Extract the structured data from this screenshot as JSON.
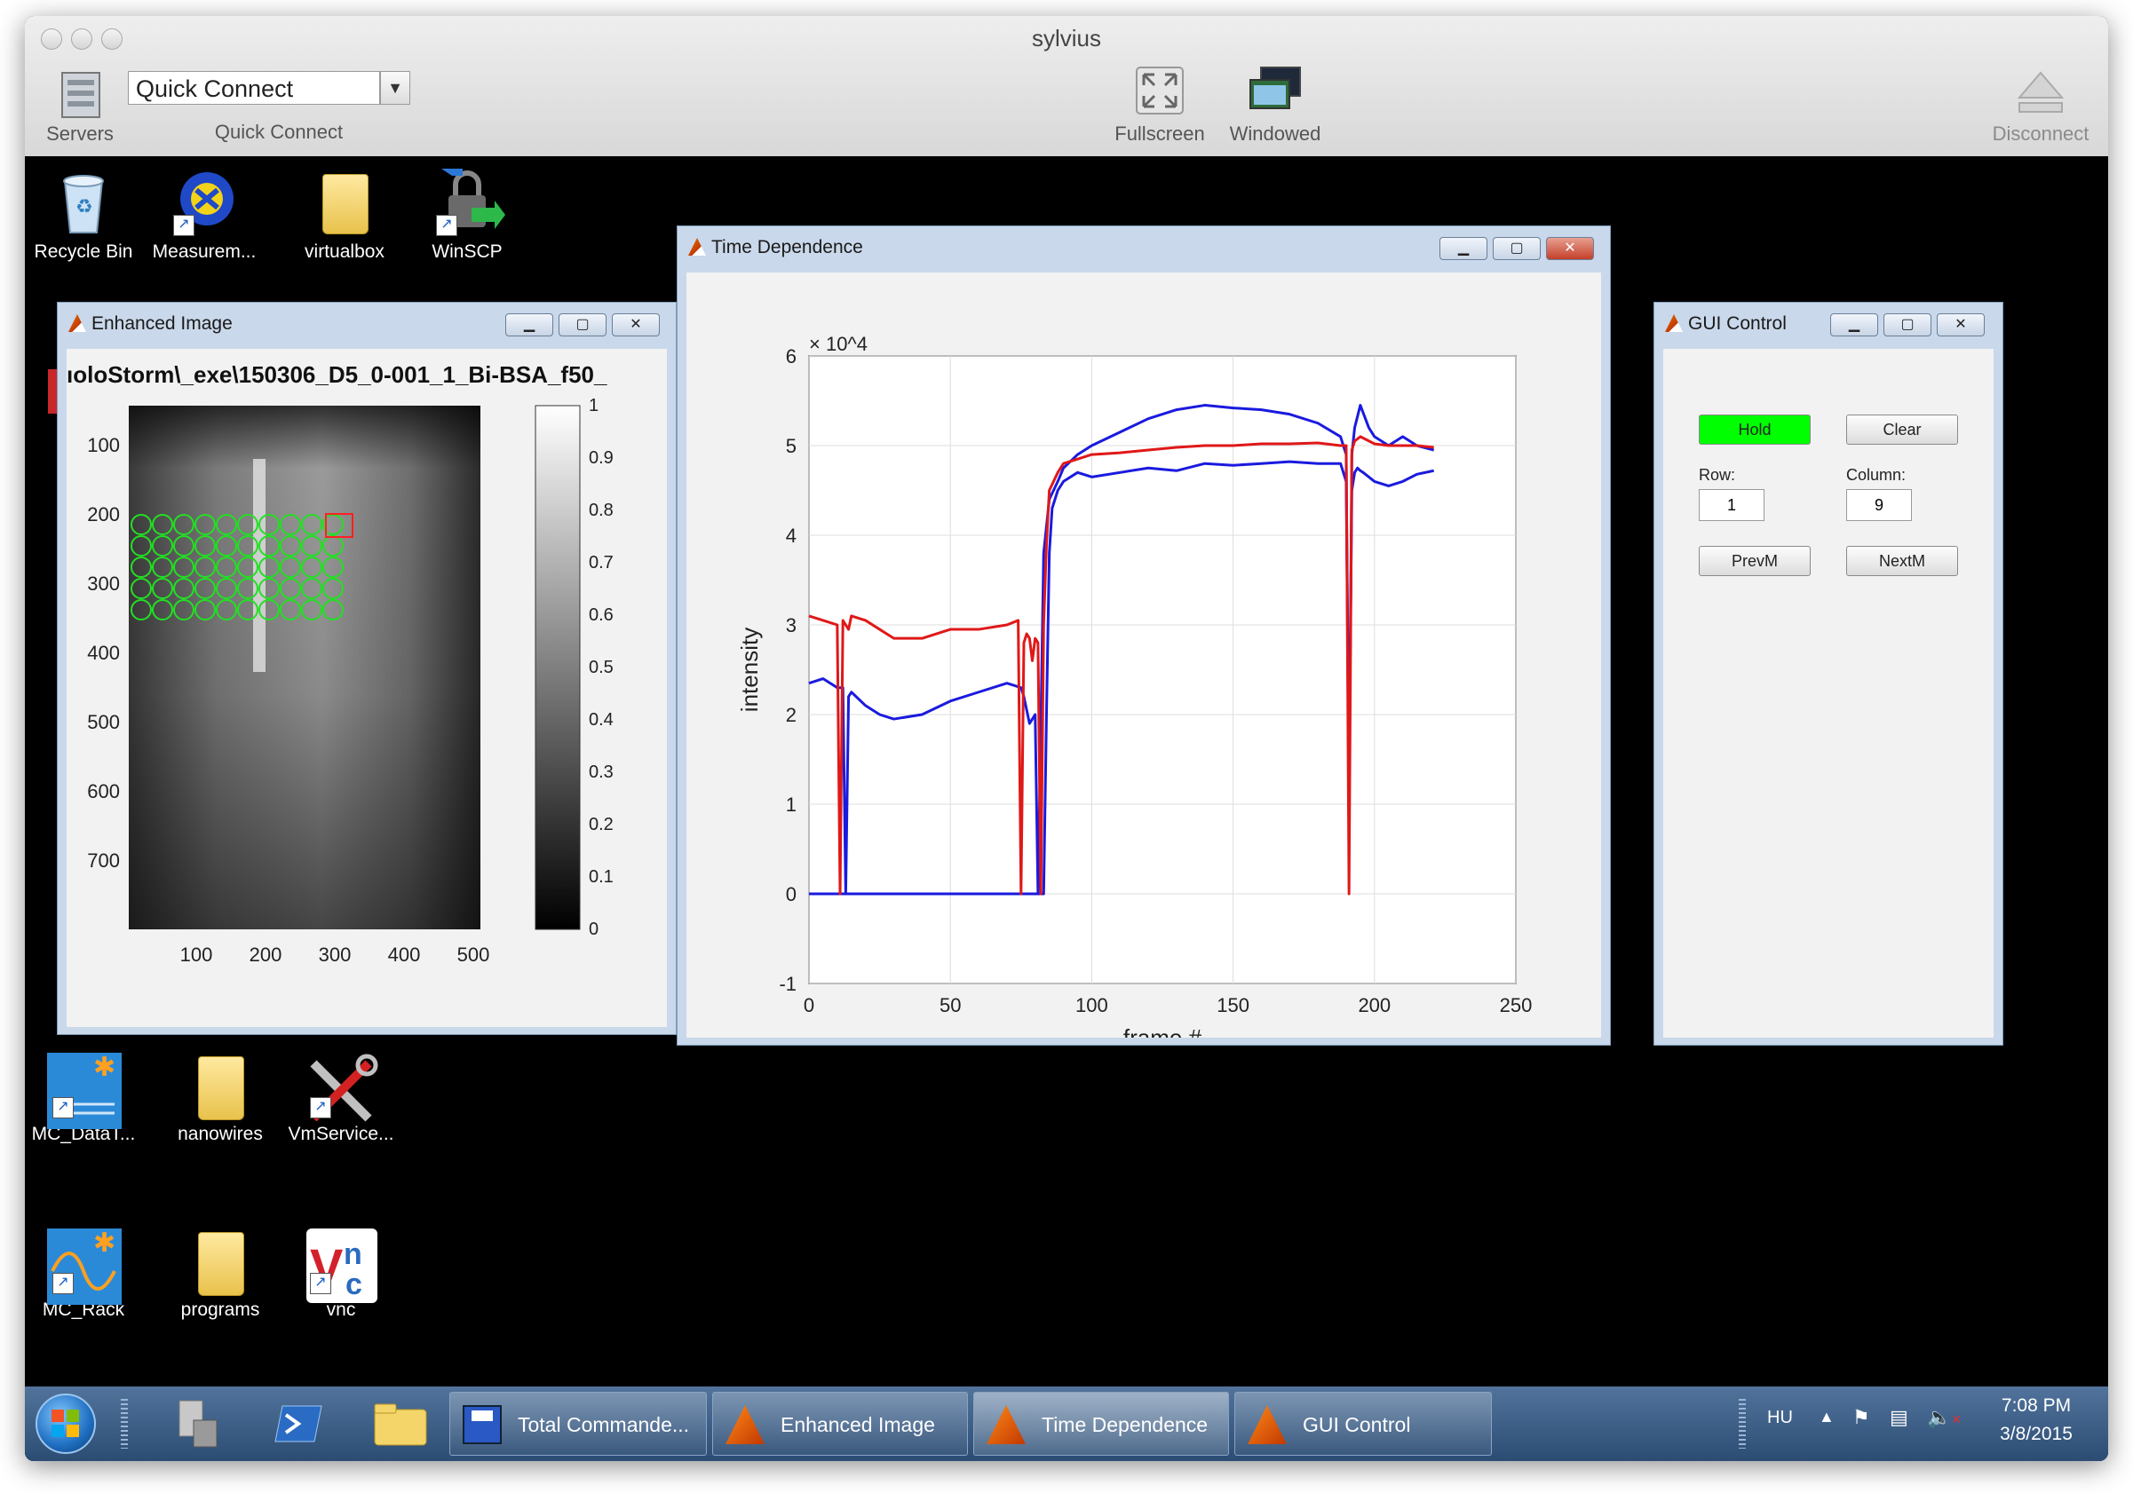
{
  "window": {
    "title": "sylvius"
  },
  "toolbar": {
    "servers_label": "Servers",
    "quick_connect_value": "Quick Connect",
    "quick_connect_label": "Quick Connect",
    "fullscreen_label": "Fullscreen",
    "windowed_label": "Windowed",
    "disconnect_label": "Disconnect"
  },
  "desktop": {
    "icons_top": [
      {
        "label": "Recycle Bin",
        "icon": "recycle-bin-icon"
      },
      {
        "label": "Measurem...",
        "icon": "measurement-app-icon"
      },
      {
        "label": "virtualbox",
        "icon": "folder-icon"
      },
      {
        "label": "WinSCP",
        "icon": "winscp-icon"
      }
    ],
    "icons_row2": [
      {
        "label": "MC_DataT...",
        "icon": "mc-datatool-icon"
      },
      {
        "label": "nanowires",
        "icon": "folder-icon"
      },
      {
        "label": "VmService...",
        "icon": "tools-icon"
      }
    ],
    "icons_row3": [
      {
        "label": "MC_Rack",
        "icon": "mc-rack-icon"
      },
      {
        "label": "programs",
        "icon": "folder-icon"
      },
      {
        "label": "vnc",
        "icon": "vnc-icon"
      }
    ]
  },
  "enhanced_image": {
    "title": "Enhanced Image",
    "heading": "ıoloStorm\\_exe\\150306_D5_0-001_1_Bi-BSA_f50_",
    "y_ticks": [
      "100",
      "200",
      "300",
      "400",
      "500",
      "600",
      "700"
    ],
    "x_ticks": [
      "100",
      "200",
      "300",
      "400",
      "500"
    ],
    "colorbar_ticks": [
      "1",
      "0.9",
      "0.8",
      "0.7",
      "0.6",
      "0.5",
      "0.4",
      "0.3",
      "0.2",
      "0.1",
      "0"
    ]
  },
  "time_dependence": {
    "title": "Time Dependence",
    "chart_data": {
      "type": "line",
      "xlabel": "frame #",
      "ylabel": "intensity",
      "y_multiplier": "× 10^4",
      "xlim": [
        0,
        250
      ],
      "ylim": [
        -1,
        6
      ],
      "x_ticks": [
        0,
        50,
        100,
        150,
        200,
        250
      ],
      "y_ticks": [
        -1,
        0,
        1,
        2,
        3,
        4,
        5,
        6
      ],
      "grid": true,
      "series": [
        {
          "color": "#1a1adf",
          "x": [
            0,
            5,
            10,
            11,
            12,
            13,
            14,
            20,
            30,
            40,
            50,
            60,
            70,
            74,
            75,
            76,
            77,
            78,
            79,
            80,
            82,
            83,
            84,
            85,
            86,
            88,
            90,
            95,
            100,
            110,
            120,
            130,
            140,
            150,
            160,
            170,
            180,
            188,
            190,
            191,
            192,
            193,
            194,
            195,
            196,
            198,
            200,
            205,
            210,
            215,
            221
          ],
          "values": [
            0,
            0,
            0,
            0,
            0,
            0,
            0,
            0,
            0,
            0,
            0,
            0,
            0,
            0,
            0,
            0,
            0,
            0,
            0,
            0,
            0,
            0,
            2,
            3.8,
            4.3,
            4.5,
            4.6,
            4.7,
            4.65,
            4.7,
            4.75,
            4.72,
            4.8,
            4.78,
            4.8,
            4.82,
            4.8,
            4.8,
            4.6,
            1.2,
            4.5,
            4.7,
            4.75,
            4.72,
            4.7,
            4.65,
            4.6,
            4.55,
            4.6,
            4.68,
            4.72
          ]
        },
        {
          "color": "#1a1adf",
          "x": [
            0,
            5,
            10,
            12,
            13,
            14,
            15,
            20,
            25,
            30,
            40,
            50,
            60,
            70,
            75,
            76,
            77,
            78,
            79,
            80,
            81,
            82,
            83,
            85,
            88,
            90,
            95,
            100,
            110,
            120,
            130,
            140,
            150,
            160,
            170,
            180,
            188,
            190,
            191,
            192,
            193,
            195,
            198,
            200,
            205,
            210,
            215,
            221
          ],
          "values": [
            2.35,
            2.4,
            2.3,
            2.3,
            0,
            2.2,
            2.25,
            2.1,
            2,
            1.95,
            2,
            2.15,
            2.25,
            2.35,
            2.3,
            2.2,
            2.05,
            1.9,
            1.95,
            2,
            0,
            1.85,
            3.8,
            4.4,
            4.6,
            4.75,
            4.9,
            5,
            5.15,
            5.3,
            5.4,
            5.45,
            5.42,
            5.4,
            5.35,
            5.25,
            5.1,
            4.9,
            1,
            4.9,
            5.2,
            5.45,
            5.2,
            5.1,
            5,
            5.1,
            5,
            4.95
          ]
        },
        {
          "color": "#e01818",
          "x": [
            0,
            5,
            10,
            11,
            12,
            13,
            14,
            15,
            20,
            25,
            30,
            40,
            50,
            60,
            70,
            74,
            75,
            76,
            77,
            78,
            79,
            80,
            81,
            82,
            83,
            84,
            85,
            88,
            90,
            95,
            100,
            110,
            120,
            130,
            140,
            150,
            160,
            170,
            180,
            188,
            190,
            191,
            192,
            193,
            195,
            200,
            205,
            210,
            215,
            221
          ],
          "values": [
            3.1,
            3.05,
            3,
            0,
            3.05,
            3,
            2.95,
            3.1,
            3.05,
            2.95,
            2.85,
            2.85,
            2.95,
            2.95,
            3,
            3.05,
            0,
            2.8,
            2.9,
            2.85,
            2.6,
            2.85,
            2.8,
            0,
            3,
            3.9,
            4.5,
            4.7,
            4.8,
            4.85,
            4.9,
            4.92,
            4.95,
            4.98,
            5,
            5,
            5.02,
            5.02,
            5.03,
            5,
            5,
            0,
            4.95,
            5.05,
            5.1,
            5.02,
            5,
            5,
            5,
            4.98
          ]
        }
      ]
    }
  },
  "gui_control": {
    "title": "GUI Control",
    "hold_label": "Hold",
    "clear_label": "Clear",
    "row_label": "Row:",
    "column_label": "Column:",
    "row_value": "1",
    "column_value": "9",
    "prev_label": "PrevM",
    "next_label": "NextM",
    "hold_color": "#00ff00"
  },
  "taskbar": {
    "buttons": [
      {
        "label": "Total Commande..."
      },
      {
        "label": "Enhanced Image"
      },
      {
        "label": "Time Dependence"
      },
      {
        "label": "GUI Control"
      }
    ],
    "language": "HU",
    "time": "7:08 PM",
    "date": "3/8/2015"
  }
}
